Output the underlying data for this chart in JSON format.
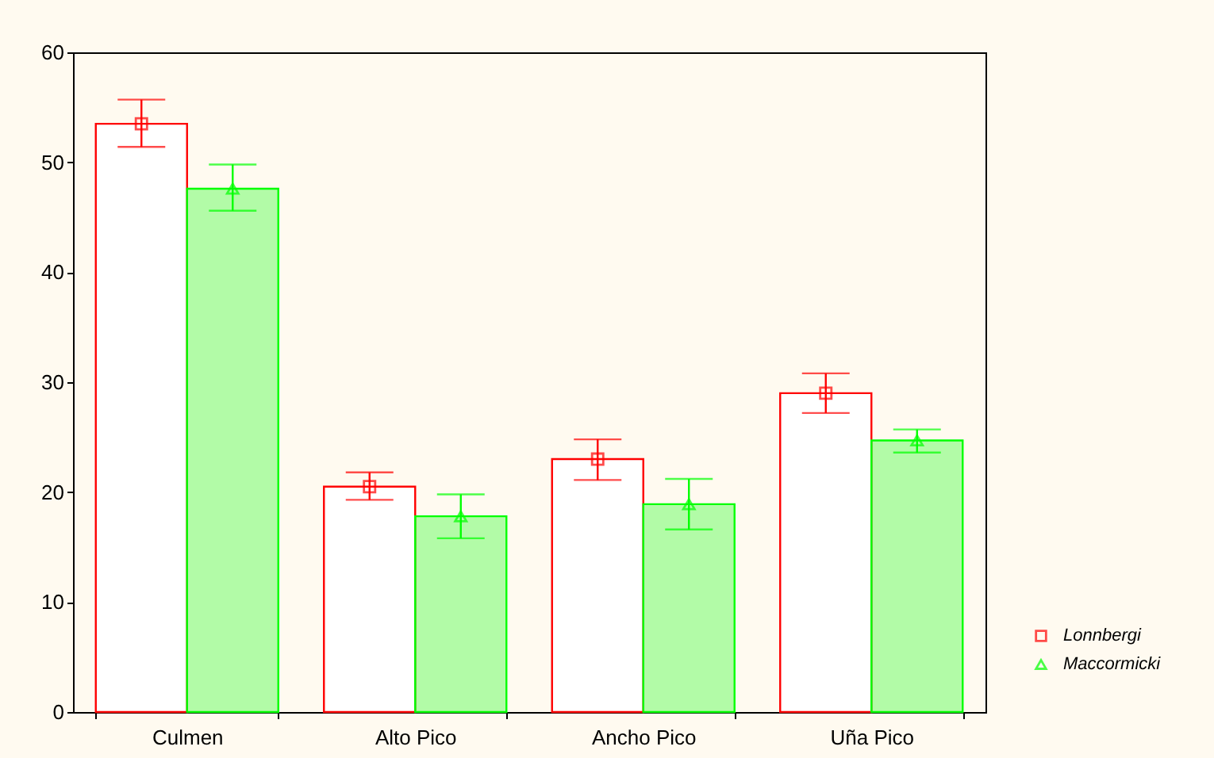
{
  "chart_data": {
    "type": "bar",
    "categories": [
      "Culmen",
      "Alto Pico",
      "Ancho Pico",
      "Uña Pico"
    ],
    "series": [
      {
        "color": "#ff0000",
        "values": [
          53.5,
          20.5,
          23.0,
          29.0
        ],
        "errors": [
          [
            51.4,
            55.7
          ],
          [
            19.3,
            21.8
          ],
          [
            21.1,
            24.8
          ],
          [
            27.2,
            30.8
          ]
        ]
      },
      {
        "color": "#00ff00",
        "values": [
          47.6,
          17.8,
          18.9,
          24.7
        ],
        "errors": [
          [
            45.6,
            49.8
          ],
          [
            15.8,
            19.8
          ],
          [
            16.6,
            21.2
          ],
          [
            23.6,
            25.7
          ]
        ]
      },
      {
        "type": "scatter",
        "name": "Lonnbergi",
        "color": "#ff0000",
        "marker": "square",
        "x": [
          "Culmen",
          "Alto Pico",
          "Ancho Pico",
          "Uña Pico"
        ],
        "values": [
          53.5,
          20.5,
          23.0,
          29.0
        ]
      },
      {
        "type": "scatter",
        "name": "Maccormicki",
        "color": "#00ff00",
        "marker": "triangle",
        "x": [
          "Culmen",
          "Alto Pico",
          "Ancho Pico",
          "Uña Pico"
        ],
        "values": [
          47.6,
          17.8,
          18.9,
          24.7
        ]
      }
    ],
    "ylim": [
      0,
      60
    ],
    "yticks": [
      0,
      10,
      20,
      30,
      40,
      50,
      60
    ],
    "grid": false,
    "legend": "bottom right"
  }
}
